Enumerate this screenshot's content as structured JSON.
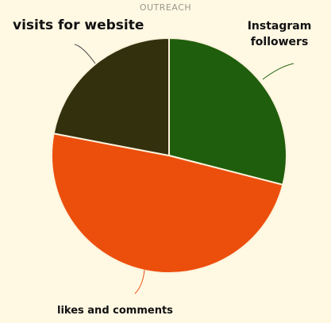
{
  "chart_data": {
    "type": "pie",
    "title": "OUTREACH",
    "slices": [
      {
        "label": "Instagram followers",
        "value": 29,
        "color": "#1f5e0c"
      },
      {
        "label": "likes and comments",
        "value": 49,
        "color": "#ec4e0c"
      },
      {
        "label": "visits for website",
        "value": 22,
        "color": "#33300e"
      }
    ],
    "slice_edge_color": "#fdf3dc",
    "leader_line_colors": {
      "Instagram followers": "#2e6b1a",
      "likes and comments": "#ec4e0c",
      "visits for website": "#444444"
    },
    "legend": "none"
  }
}
